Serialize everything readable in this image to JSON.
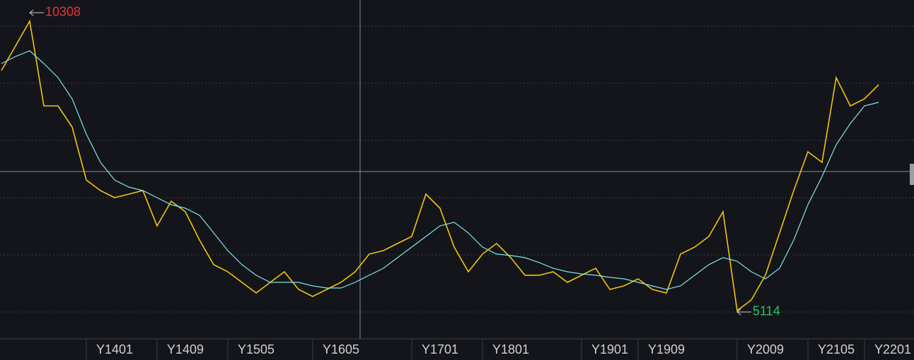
{
  "chart_data": {
    "type": "line",
    "categories": [
      null,
      null,
      null,
      null,
      null,
      null,
      null,
      null,
      "Y1401",
      null,
      null,
      null,
      null,
      "Y1409",
      null,
      null,
      null,
      null,
      "Y1505",
      null,
      null,
      null,
      null,
      null,
      "Y1605",
      null,
      null,
      null,
      null,
      null,
      null,
      "Y1701",
      null,
      null,
      null,
      null,
      "Y1801",
      null,
      null,
      null,
      null,
      null,
      null,
      "Y1901",
      null,
      null,
      null,
      "Y1909",
      null,
      null,
      null,
      null,
      null,
      null,
      "Y2009",
      null,
      null,
      null,
      null,
      "Y2105",
      null,
      null,
      null,
      "Y2201"
    ],
    "series": [
      {
        "color": "#f2c40f",
        "values": [
          9421,
          9865,
          10308,
          8788,
          8788,
          8408,
          7458,
          7268,
          7141,
          7204,
          7268,
          6634,
          7078,
          6888,
          6381,
          5938,
          5811,
          5621,
          5431,
          5621,
          5811,
          5494,
          5367,
          5494,
          5621,
          5811,
          6128,
          6191,
          6318,
          6444,
          7204,
          6951,
          6254,
          5811,
          6128,
          6318,
          6064,
          5748,
          5748,
          5811,
          5621,
          5748,
          5874,
          5494,
          5557,
          5684,
          5494,
          5431,
          6128,
          6254,
          6444,
          6888,
          5114,
          5304,
          5748,
          6508,
          7268,
          7964,
          7774,
          9295,
          8788,
          8915,
          9168,
          null
        ]
      },
      {
        "color": "#7fe3e8",
        "values": [
          9548,
          9675,
          9776,
          9548,
          9295,
          8915,
          8281,
          7774,
          7458,
          7331,
          7268,
          7141,
          7014,
          6951,
          6824,
          6508,
          6191,
          5938,
          5748,
          5621,
          5621,
          5621,
          5557,
          5519,
          5519,
          5621,
          5748,
          5874,
          6064,
          6254,
          6444,
          6634,
          6698,
          6508,
          6254,
          6128,
          6102,
          6064,
          5976,
          5874,
          5811,
          5773,
          5748,
          5710,
          5684,
          5621,
          5557,
          5494,
          5557,
          5748,
          5938,
          6064,
          6001,
          5811,
          5684,
          5874,
          6381,
          7014,
          7521,
          8091,
          8471,
          8788,
          8851,
          null
        ]
      }
    ],
    "ylim": [
      4607,
      10688
    ],
    "max_color": "#e8333f",
    "min_color": "#22c55e"
  }
}
